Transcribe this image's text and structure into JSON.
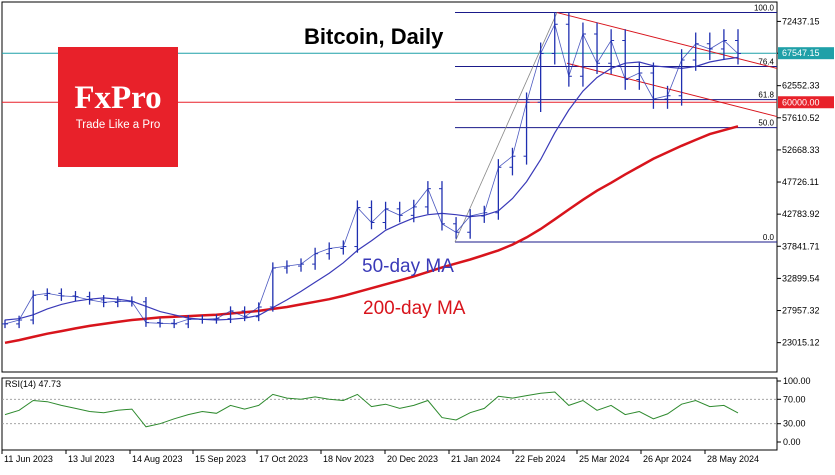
{
  "chart_data": {
    "type": "line",
    "title": "Bitcoin, Daily",
    "logo": {
      "main": "FxPro",
      "tagline": "Trade Like a Pro"
    },
    "price_ticks": [
      "72437.15",
      "67547.15",
      "62552.33",
      "57610.52",
      "52668.33",
      "47726.11",
      "42783.92",
      "37841.71",
      "32899.54",
      "27957.32",
      "23015.12"
    ],
    "price_tick_values": [
      72437.15,
      67547.15,
      62552.33,
      57610.52,
      52668.33,
      47726.11,
      42783.92,
      37841.71,
      32899.54,
      27957.32,
      23015.12
    ],
    "current_price": {
      "value": 67547.15,
      "label": "67547.15",
      "color": "#1fa0a8"
    },
    "level_60000": {
      "value": 60000,
      "label": "60000.00",
      "color": "#e8212a"
    },
    "fib_levels": [
      {
        "label": "100.0",
        "value": 73800
      },
      {
        "label": "76.4",
        "value": 65500
      },
      {
        "label": "61.8",
        "value": 60400
      },
      {
        "label": "50.0",
        "value": 56100
      },
      {
        "label": "0.0",
        "value": 38500
      }
    ],
    "x_ticks": [
      "11 Jun 2023",
      "13 Jul 2023",
      "14 Aug 2023",
      "15 Sep 2023",
      "17 Oct 2023",
      "18 Nov 2023",
      "20 Dec 2023",
      "21 Jan 2024",
      "22 Feb 2024",
      "25 Mar 2024",
      "26 Apr 2024",
      "28 May 2024"
    ],
    "ma50_label": "50-day MA",
    "ma200_label": "200-day MA",
    "price_series": [
      {
        "x": "Jun 11",
        "v": 25900
      },
      {
        "x": "Jun 18",
        "v": 26500
      },
      {
        "x": "Jun 25",
        "v": 30300
      },
      {
        "x": "Jul 2",
        "v": 30600
      },
      {
        "x": "Jul 9",
        "v": 30200
      },
      {
        "x": "Jul 16",
        "v": 30100
      },
      {
        "x": "Jul 23",
        "v": 29600
      },
      {
        "x": "Jul 30",
        "v": 29200
      },
      {
        "x": "Aug 6",
        "v": 29400
      },
      {
        "x": "Aug 13",
        "v": 29300
      },
      {
        "x": "Aug 20",
        "v": 26100
      },
      {
        "x": "Aug 27",
        "v": 26000
      },
      {
        "x": "Sep 3",
        "v": 25900
      },
      {
        "x": "Sep 10",
        "v": 26600
      },
      {
        "x": "Sep 17",
        "v": 26600
      },
      {
        "x": "Sep 24",
        "v": 26700
      },
      {
        "x": "Oct 1",
        "v": 27900
      },
      {
        "x": "Oct 8",
        "v": 27000
      },
      {
        "x": "Oct 15",
        "v": 28500
      },
      {
        "x": "Oct 22",
        "v": 34500
      },
      {
        "x": "Oct 29",
        "v": 34800
      },
      {
        "x": "Nov 5",
        "v": 35100
      },
      {
        "x": "Nov 12",
        "v": 36700
      },
      {
        "x": "Nov 19",
        "v": 37500
      },
      {
        "x": "Nov 26",
        "v": 37800
      },
      {
        "x": "Dec 3",
        "v": 43800
      },
      {
        "x": "Dec 10",
        "v": 41500
      },
      {
        "x": "Dec 17",
        "v": 43600
      },
      {
        "x": "Dec 24",
        "v": 42600
      },
      {
        "x": "Dec 31",
        "v": 43900
      },
      {
        "x": "Jan 7",
        "v": 46700
      },
      {
        "x": "Jan 14",
        "v": 41300
      },
      {
        "x": "Jan 21",
        "v": 40000
      },
      {
        "x": "Jan 28",
        "v": 42500
      },
      {
        "x": "Feb 4",
        "v": 43000
      },
      {
        "x": "Feb 11",
        "v": 50000
      },
      {
        "x": "Feb 18",
        "v": 51700
      },
      {
        "x": "Feb 25",
        "v": 60000
      },
      {
        "x": "Mar 4",
        "v": 67500
      },
      {
        "x": "Mar 11",
        "v": 72000
      },
      {
        "x": "Mar 18",
        "v": 64000
      },
      {
        "x": "Mar 25",
        "v": 70500
      },
      {
        "x": "Apr 1",
        "v": 66000
      },
      {
        "x": "Apr 8",
        "v": 69500
      },
      {
        "x": "Apr 15",
        "v": 63500
      },
      {
        "x": "Apr 22",
        "v": 64500
      },
      {
        "x": "Apr 29",
        "v": 60500
      },
      {
        "x": "May 6",
        "v": 61000
      },
      {
        "x": "May 13",
        "v": 66500
      },
      {
        "x": "May 20",
        "v": 69000
      },
      {
        "x": "May 27",
        "v": 68200
      },
      {
        "x": "Jun 3",
        "v": 69500
      },
      {
        "x": "Jun 7",
        "v": 67500
      }
    ],
    "ma50_series": [
      26500,
      26700,
      27300,
      28200,
      28900,
      29400,
      29700,
      29900,
      29700,
      29400,
      28600,
      27800,
      27300,
      26800,
      26600,
      26500,
      26600,
      26800,
      27200,
      28400,
      29600,
      30900,
      32300,
      33700,
      35300,
      37200,
      38700,
      40300,
      41300,
      42200,
      42700,
      42900,
      42700,
      42400,
      42600,
      43300,
      45200,
      47800,
      51200,
      55300,
      58800,
      61700,
      63800,
      65200,
      66000,
      66200,
      65600,
      65400,
      65200,
      65500,
      66200,
      66600,
      66900
    ],
    "ma200_series": [
      23000,
      23400,
      23900,
      24400,
      24800,
      25200,
      25600,
      25900,
      26200,
      26500,
      26700,
      26900,
      27000,
      27100,
      27200,
      27300,
      27500,
      27700,
      27900,
      28200,
      28500,
      28900,
      29300,
      29700,
      30200,
      30800,
      31400,
      32000,
      32600,
      33200,
      33900,
      34600,
      35200,
      35800,
      36500,
      37200,
      38100,
      39200,
      40500,
      42000,
      43500,
      45000,
      46400,
      47600,
      48900,
      50100,
      51300,
      52300,
      53300,
      54200,
      55100,
      55700,
      56300
    ],
    "rsi": {
      "label": "RSI(14) 47.73",
      "ticks": [
        "100.00",
        "70.00",
        "30.00",
        "0.00"
      ],
      "tick_values": [
        100,
        70,
        30,
        0
      ],
      "values": [
        45,
        52,
        68,
        66,
        60,
        55,
        50,
        48,
        52,
        54,
        25,
        30,
        38,
        45,
        50,
        47,
        60,
        54,
        60,
        78,
        72,
        70,
        74,
        70,
        68,
        78,
        58,
        62,
        55,
        60,
        68,
        40,
        36,
        48,
        55,
        75,
        72,
        76,
        80,
        82,
        60,
        68,
        52,
        60,
        45,
        50,
        38,
        46,
        62,
        68,
        58,
        60,
        47.73
      ]
    }
  },
  "colors": {
    "ma50": "#3a3ab8",
    "ma200": "#d8141c",
    "price": "#1f2fb0",
    "gridline": "#d8d8d8"
  }
}
